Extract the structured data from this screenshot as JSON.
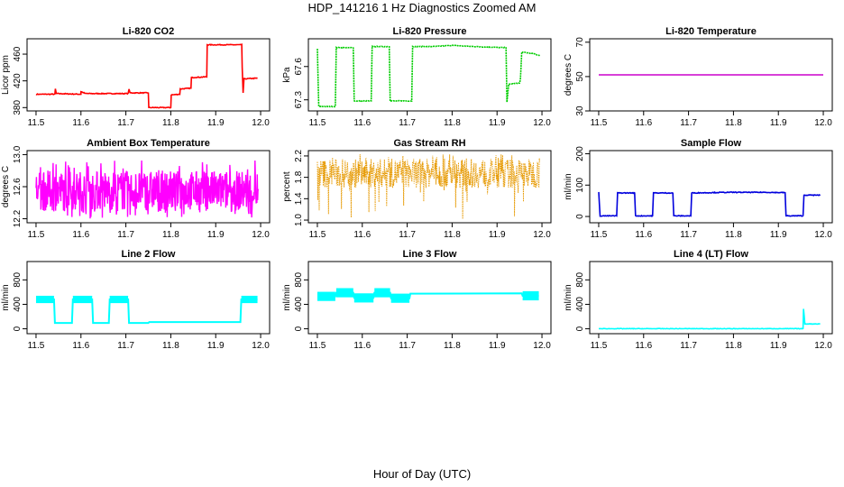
{
  "page": {
    "title": "HDP_141216  1 Hz Diagnostics Zoomed AM",
    "xlabel": "Hour of Day (UTC)"
  },
  "chart_data": [
    {
      "type": "line",
      "title": "Li-820 CO2",
      "ylabel": "Licor ppm",
      "color": "#ff0000",
      "xlim": [
        11.48,
        12.02
      ],
      "ylim": [
        375,
        483
      ],
      "xticks": [
        "11.5",
        "11.6",
        "11.7",
        "11.8",
        "11.9",
        "12.0"
      ],
      "yticks": [
        "380",
        "420",
        "460"
      ],
      "noise": 0.6,
      "series": [
        {
          "points": [
            [
              11.5,
              400
            ],
            [
              11.542,
              400
            ],
            [
              11.543,
              408
            ],
            [
              11.545,
              401
            ],
            [
              11.6,
              400
            ],
            [
              11.6,
              404
            ],
            [
              11.61,
              401
            ],
            [
              11.705,
              401
            ],
            [
              11.707,
              408
            ],
            [
              11.709,
              402
            ],
            [
              11.75,
              402
            ],
            [
              11.751,
              380
            ],
            [
              11.8,
              380
            ],
            [
              11.801,
              399
            ],
            [
              11.82,
              400
            ],
            [
              11.821,
              408
            ],
            [
              11.845,
              409
            ],
            [
              11.846,
              425
            ],
            [
              11.88,
              426
            ],
            [
              11.881,
              474
            ],
            [
              11.958,
              474
            ],
            [
              11.959,
              440
            ],
            [
              11.961,
              402
            ],
            [
              11.963,
              423
            ],
            [
              11.993,
              424
            ]
          ]
        }
      ]
    },
    {
      "type": "line",
      "title": "Li-820 Pressure",
      "ylabel": "kPa",
      "color": "#00cc00",
      "xlim": [
        11.48,
        12.02
      ],
      "ylim": [
        67.2,
        67.85
      ],
      "xticks": [
        "11.5",
        "11.6",
        "11.7",
        "11.8",
        "11.9",
        "12.0"
      ],
      "yticks": [
        "67.3",
        "67.6"
      ],
      "noise": 0.003,
      "series": [
        {
          "points": [
            [
              11.5,
              67.76
            ],
            [
              11.503,
              67.24
            ],
            [
              11.54,
              67.24
            ],
            [
              11.542,
              67.77
            ],
            [
              11.58,
              67.77
            ],
            [
              11.582,
              67.29
            ],
            [
              11.62,
              67.29
            ],
            [
              11.622,
              67.78
            ],
            [
              11.66,
              67.78
            ],
            [
              11.662,
              67.29
            ],
            [
              11.71,
              67.29
            ],
            [
              11.712,
              67.78
            ],
            [
              11.76,
              67.78
            ],
            [
              11.8,
              67.79
            ],
            [
              11.85,
              67.78
            ],
            [
              11.92,
              67.77
            ],
            [
              11.922,
              67.28
            ],
            [
              11.926,
              67.44
            ],
            [
              11.95,
              67.45
            ],
            [
              11.952,
              67.48
            ],
            [
              11.955,
              67.73
            ],
            [
              11.975,
              67.72
            ],
            [
              11.995,
              67.7
            ]
          ]
        }
      ]
    },
    {
      "type": "line",
      "title": "Li-820 Temperature",
      "ylabel": "degrees C",
      "color": "#cc00cc",
      "xlim": [
        11.48,
        12.02
      ],
      "ylim": [
        30,
        72
      ],
      "xticks": [
        "11.5",
        "11.6",
        "11.7",
        "11.8",
        "11.9",
        "12.0"
      ],
      "yticks": [
        "30",
        "50",
        "70"
      ],
      "noise": 0,
      "series": [
        {
          "points": [
            [
              11.5,
              51
            ],
            [
              12.0,
              51
            ]
          ]
        }
      ]
    },
    {
      "type": "line",
      "title": "Ambient Box Temperature",
      "ylabel": "degrees C",
      "color": "#ff00ff",
      "xlim": [
        11.48,
        12.02
      ],
      "ylim": [
        12.15,
        13.05
      ],
      "xticks": [
        "11.5",
        "11.6",
        "11.7",
        "11.8",
        "11.9",
        "12.0"
      ],
      "yticks": [
        "12.2",
        "12.6",
        "13.0"
      ],
      "noise": 0,
      "band": {
        "lo": 12.3,
        "hi": 12.8,
        "mid": 12.58,
        "spike_lo": 12.2,
        "spike_hi": 12.95
      },
      "series": [
        {
          "points": [
            [
              11.5,
              12.58
            ],
            [
              11.995,
              12.58
            ]
          ]
        }
      ]
    },
    {
      "type": "scatter",
      "title": "Gas Stream RH",
      "ylabel": "percent",
      "color": "#e69900",
      "xlim": [
        11.48,
        12.02
      ],
      "ylim": [
        0.95,
        2.3
      ],
      "xticks": [
        "11.5",
        "11.6",
        "11.7",
        "11.8",
        "11.9",
        "12.0"
      ],
      "yticks": [
        "1.0",
        "1.4",
        "1.8",
        "2.2"
      ],
      "noise": 0,
      "band": {
        "lo": 1.6,
        "hi": 2.15,
        "mid": 1.88,
        "spike_lo": 1.0,
        "spike_hi": 2.25
      },
      "series": [
        {
          "points": [
            [
              11.5,
              1.9
            ],
            [
              11.995,
              1.9
            ]
          ]
        }
      ]
    },
    {
      "type": "line",
      "title": "Sample Flow",
      "ylabel": "ml/min",
      "color": "#0000dd",
      "xlim": [
        11.48,
        12.02
      ],
      "ylim": [
        -20,
        210
      ],
      "xticks": [
        "11.5",
        "11.6",
        "11.7",
        "11.8",
        "11.9",
        "12.0"
      ],
      "yticks": [
        "0",
        "100",
        "200"
      ],
      "noise": 1.2,
      "series": [
        {
          "points": [
            [
              11.5,
              78
            ],
            [
              11.503,
              2
            ],
            [
              11.54,
              2
            ],
            [
              11.542,
              75
            ],
            [
              11.58,
              75
            ],
            [
              11.582,
              2
            ],
            [
              11.62,
              2
            ],
            [
              11.622,
              75
            ],
            [
              11.665,
              75
            ],
            [
              11.667,
              2
            ],
            [
              11.705,
              2
            ],
            [
              11.707,
              75
            ],
            [
              11.79,
              77
            ],
            [
              11.87,
              77
            ],
            [
              11.915,
              76
            ],
            [
              11.917,
              2
            ],
            [
              11.955,
              2
            ],
            [
              11.957,
              68
            ],
            [
              11.993,
              68
            ]
          ]
        }
      ]
    },
    {
      "type": "line",
      "title": "Line 2 Flow",
      "ylabel": "ml/min",
      "color": "#00ffff",
      "xlim": [
        11.48,
        12.02
      ],
      "ylim": [
        -80,
        1100
      ],
      "xticks": [
        "11.5",
        "11.6",
        "11.7",
        "11.8",
        "11.9",
        "12.0"
      ],
      "yticks": [
        "0",
        "400",
        "800"
      ],
      "noise": 0,
      "band": {
        "lo": 420,
        "hi": 540,
        "mid": 480,
        "spike_lo": 0,
        "spike_hi": 0
      },
      "series": [
        {
          "points": [
            [
              11.5,
              480
            ],
            [
              11.54,
              480
            ],
            [
              11.542,
              95
            ],
            [
              11.58,
              95
            ],
            [
              11.582,
              480
            ],
            [
              11.625,
              480
            ],
            [
              11.627,
              95
            ],
            [
              11.662,
              95
            ],
            [
              11.664,
              480
            ],
            [
              11.705,
              480
            ],
            [
              11.707,
              95
            ],
            [
              11.75,
              95
            ],
            [
              11.752,
              110
            ],
            [
              11.955,
              110
            ],
            [
              11.957,
              480
            ],
            [
              11.993,
              480
            ]
          ]
        }
      ]
    },
    {
      "type": "line",
      "title": "Line 3 Flow",
      "ylabel": "ml/min",
      "color": "#00ffff",
      "xlim": [
        11.48,
        12.02
      ],
      "ylim": [
        -80,
        1100
      ],
      "xticks": [
        "11.5",
        "11.6",
        "11.7",
        "11.8",
        "11.9",
        "12.0"
      ],
      "yticks": [
        "0",
        "400",
        "800"
      ],
      "noise": 0,
      "band": {
        "lo": 460,
        "hi": 610,
        "mid": 540,
        "spike_lo": 0,
        "spike_hi": 0
      },
      "series": [
        {
          "points": [
            [
              11.5,
              530
            ],
            [
              11.54,
              530
            ],
            [
              11.542,
              590
            ],
            [
              11.58,
              590
            ],
            [
              11.582,
              505
            ],
            [
              11.625,
              505
            ],
            [
              11.627,
              590
            ],
            [
              11.662,
              590
            ],
            [
              11.664,
              500
            ],
            [
              11.705,
              500
            ],
            [
              11.707,
              575
            ],
            [
              11.955,
              580
            ],
            [
              11.957,
              540
            ],
            [
              11.993,
              540
            ]
          ]
        }
      ]
    },
    {
      "type": "line",
      "title": "Line 4 (LT) Flow",
      "ylabel": "ml/min",
      "color": "#00ffff",
      "xlim": [
        11.48,
        12.02
      ],
      "ylim": [
        -80,
        1100
      ],
      "xticks": [
        "11.5",
        "11.6",
        "11.7",
        "11.8",
        "11.9",
        "12.0"
      ],
      "yticks": [
        "0",
        "400",
        "800"
      ],
      "noise": 4,
      "series": [
        {
          "points": [
            [
              11.5,
              2
            ],
            [
              11.955,
              2
            ],
            [
              11.956,
              330
            ],
            [
              11.959,
              80
            ],
            [
              11.993,
              80
            ]
          ]
        }
      ]
    }
  ]
}
